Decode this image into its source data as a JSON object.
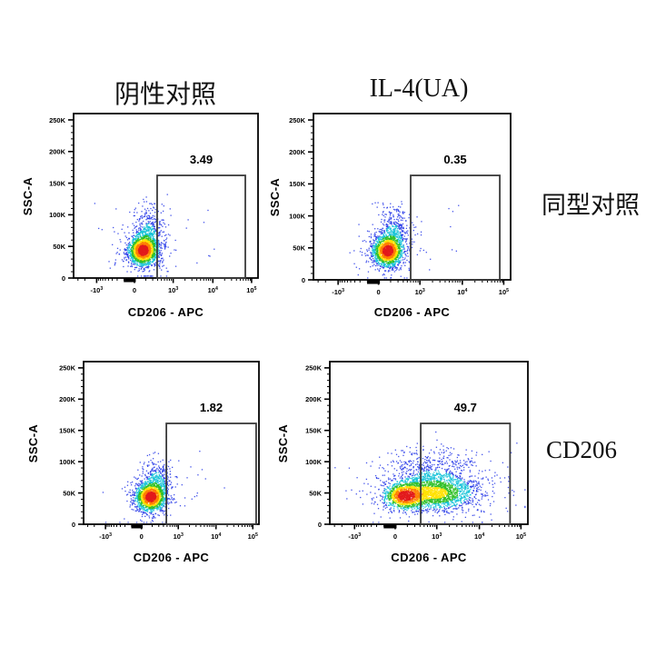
{
  "figure": {
    "background": "#ffffff",
    "column_titles": [
      "阴性对照",
      "IL-4(UA)"
    ],
    "row_labels": [
      "同型对照",
      "CD206"
    ]
  },
  "chart_data": {
    "type": "scatter",
    "subtype": "flow-cytometry-pseudocolor-density",
    "xlabel": "CD206 - APC",
    "ylabel": "SSC-A",
    "x_axis": {
      "scale": "biexponential",
      "ticks": [
        {
          "base": "-10",
          "exp": "3",
          "f": 0.125
        },
        {
          "base": "0",
          "exp": "",
          "f": 0.33
        },
        {
          "base": "10",
          "exp": "3",
          "f": 0.54
        },
        {
          "base": "10",
          "exp": "4",
          "f": 0.755
        },
        {
          "base": "10",
          "exp": "5",
          "f": 0.965
        }
      ],
      "decade_width": 0.2125,
      "zero_bar": {
        "f0": 0.272,
        "f1": 0.337
      }
    },
    "y_axis": {
      "max": 260000,
      "minor_step": 10000,
      "ticks": [
        {
          "label": "0",
          "v": 0
        },
        {
          "label": "50K",
          "v": 50000
        },
        {
          "label": "100K",
          "v": 100000
        },
        {
          "label": "150K",
          "v": 150000
        },
        {
          "label": "200K",
          "v": 200000
        },
        {
          "label": "250K",
          "v": 250000
        }
      ]
    },
    "palette": {
      "red": "#e31a1c",
      "orange": "#ff7f00",
      "yellow": "#ffe100",
      "green": "#2fbf26",
      "cyan": "#16c3d8",
      "blue": "#2a3ce8"
    },
    "panels": [
      {
        "name": "negative-control-isotype",
        "column": "阴性对照",
        "row": "同型对照",
        "gate_percent": "3.49",
        "seed": 11,
        "gate": {
          "fx0": 0.453,
          "fx1": 0.931,
          "fy_top": 0.624
        },
        "clusters": [
          {
            "cx": 0.375,
            "cy": 0.162,
            "sx": 0.04,
            "sy": 0.046,
            "n": 1500
          },
          {
            "cx": 0.405,
            "cy": 0.265,
            "sx": 0.04,
            "sy": 0.082,
            "n": 430
          },
          {
            "cx": 0.38,
            "cy": 0.19,
            "sx": 0.082,
            "sy": 0.1,
            "n": 240
          }
        ],
        "sparse": {
          "x0": 0.46,
          "x1": 0.8,
          "y0": 0.08,
          "y1": 0.45,
          "n": 16
        }
      },
      {
        "name": "il4ua-isotype",
        "column": "IL-4(UA)",
        "row": "同型对照",
        "gate_percent": "0.35",
        "seed": 22,
        "gate": {
          "fx0": 0.493,
          "fx1": 0.945,
          "fy_top": 0.628
        },
        "clusters": [
          {
            "cx": 0.375,
            "cy": 0.168,
            "sx": 0.038,
            "sy": 0.046,
            "n": 1500
          },
          {
            "cx": 0.405,
            "cy": 0.27,
            "sx": 0.036,
            "sy": 0.078,
            "n": 400
          },
          {
            "cx": 0.38,
            "cy": 0.19,
            "sx": 0.075,
            "sy": 0.095,
            "n": 230
          }
        ],
        "sparse": {
          "x0": 0.48,
          "x1": 0.75,
          "y0": 0.1,
          "y1": 0.45,
          "n": 11
        }
      },
      {
        "name": "negative-control-cd206",
        "column": "阴性对照",
        "row": "CD206",
        "gate_percent": "1.82",
        "seed": 33,
        "gate": {
          "fx0": 0.472,
          "fx1": 0.984,
          "fy_top": 0.62
        },
        "clusters": [
          {
            "cx": 0.38,
            "cy": 0.162,
            "sx": 0.043,
            "sy": 0.044,
            "n": 1400
          },
          {
            "cx": 0.415,
            "cy": 0.255,
            "sx": 0.04,
            "sy": 0.075,
            "n": 380
          },
          {
            "cx": 0.385,
            "cy": 0.185,
            "sx": 0.082,
            "sy": 0.092,
            "n": 220
          }
        ],
        "sparse": {
          "x0": 0.48,
          "x1": 0.82,
          "y0": 0.08,
          "y1": 0.5,
          "n": 13
        }
      },
      {
        "name": "il4ua-cd206",
        "column": "IL-4(UA)",
        "row": "CD206",
        "gate_percent": "49.7",
        "seed": 44,
        "gate": {
          "fx0": 0.459,
          "fx1": 0.91,
          "fy_top": 0.62
        },
        "clusters": [
          {
            "cx": 0.375,
            "cy": 0.168,
            "sx": 0.052,
            "sy": 0.042,
            "n": 1050
          },
          {
            "cx": 0.53,
            "cy": 0.185,
            "sx": 0.105,
            "sy": 0.052,
            "n": 1500
          },
          {
            "cx": 0.53,
            "cy": 0.3,
            "sx": 0.115,
            "sy": 0.078,
            "n": 520
          },
          {
            "cx": 0.5,
            "cy": 0.22,
            "sx": 0.165,
            "sy": 0.105,
            "n": 380
          }
        ],
        "sparse": {
          "x0": 0.3,
          "x1": 0.95,
          "y0": 0.05,
          "y1": 0.58,
          "n": 60
        }
      }
    ]
  }
}
